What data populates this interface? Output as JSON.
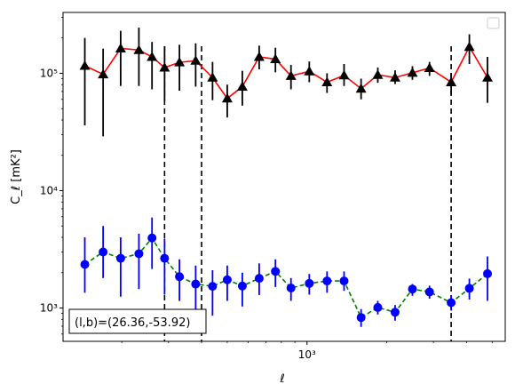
{
  "chart_data": {
    "type": "line",
    "xlabel": "ℓ",
    "ylabel": "C_ℓ  [mK²]",
    "x_scale": "log",
    "y_scale": "log",
    "xlim": [
      120,
      5600
    ],
    "ylim": [
      520,
      330000
    ],
    "x_tick_labels": [
      {
        "value": 1000,
        "label": "10³"
      }
    ],
    "y_tick_labels": [
      {
        "value": 1000,
        "label": "10³"
      },
      {
        "value": 10000,
        "label": "10⁴"
      },
      {
        "value": 100000,
        "label": "10⁵"
      }
    ],
    "legend": {
      "placement": "top-right",
      "entries": []
    },
    "annotation": "(l,b)=(26.36,-53.92)",
    "vertical_lines": [
      290,
      400,
      3500
    ],
    "x": [
      145,
      170,
      198,
      232,
      260,
      290,
      330,
      380,
      440,
      500,
      570,
      660,
      760,
      870,
      1020,
      1190,
      1380,
      1600,
      1850,
      2150,
      2500,
      2900,
      3500,
      4100,
      4800
    ],
    "series": [
      {
        "color": "#ff0000",
        "marker": "triangle",
        "marker_color": "#000000",
        "line_style": "solid",
        "values": [
          116000,
          98000,
          163000,
          158000,
          138000,
          112000,
          124000,
          128000,
          92000,
          61000,
          77000,
          138000,
          132000,
          95000,
          104000,
          84000,
          96000,
          74000,
          97000,
          92000,
          101000,
          111000,
          84000,
          168000,
          92000
        ],
        "err_low": [
          36000,
          29000,
          78000,
          78000,
          73000,
          58000,
          71000,
          77000,
          59000,
          42000,
          53000,
          108000,
          102000,
          73000,
          84000,
          68000,
          78000,
          60000,
          83000,
          81000,
          88000,
          95000,
          66000,
          120000,
          56000
        ],
        "err_high": [
          200000,
          162000,
          230000,
          245000,
          185000,
          170000,
          175000,
          180000,
          125000,
          80000,
          105000,
          172000,
          165000,
          118000,
          126000,
          100000,
          120000,
          90000,
          112000,
          106000,
          115000,
          125000,
          100000,
          215000,
          138000
        ]
      },
      {
        "color": "#008000",
        "marker": "circle",
        "marker_color": "#0000ff",
        "line_style": "dashed",
        "values": [
          2350,
          3000,
          2650,
          2900,
          3950,
          2650,
          1850,
          1600,
          1530,
          1740,
          1540,
          1790,
          2050,
          1480,
          1620,
          1700,
          1700,
          830,
          1010,
          920,
          1450,
          1370,
          1110,
          1470,
          1960
        ],
        "err_low": [
          1350,
          1800,
          1250,
          1450,
          2150,
          1300,
          1150,
          920,
          860,
          1150,
          1030,
          1290,
          1510,
          1150,
          1300,
          1350,
          1400,
          690,
          880,
          780,
          1270,
          1200,
          950,
          1180,
          1150
        ],
        "err_high": [
          4000,
          5000,
          4000,
          4300,
          5900,
          3900,
          2600,
          2300,
          2100,
          2300,
          2000,
          2400,
          2600,
          1800,
          1950,
          2050,
          2050,
          980,
          1150,
          1060,
          1600,
          1550,
          1280,
          1780,
          2750
        ]
      }
    ]
  }
}
